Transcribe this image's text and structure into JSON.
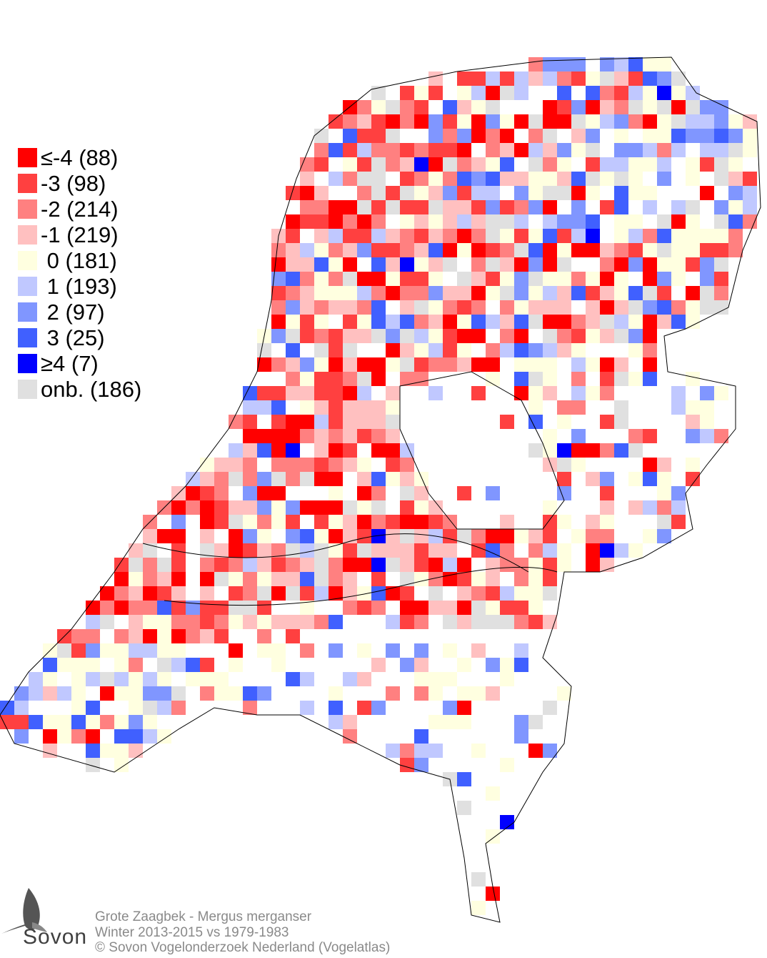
{
  "legend": {
    "items": [
      {
        "label": "≤-4 (88)",
        "color": "#ff0000"
      },
      {
        "label": "-3 (98)",
        "color": "#ff4040"
      },
      {
        "label": "-2 (214)",
        "color": "#ff8080"
      },
      {
        "label": "-1 (219)",
        "color": "#ffc0c0"
      },
      {
        "label": " 0 (181)",
        "color": "#ffffe0"
      },
      {
        "label": " 1 (193)",
        "color": "#c0c8ff"
      },
      {
        "label": " 2 (97)",
        "color": "#8096ff"
      },
      {
        "label": " 3 (25)",
        "color": "#4060ff"
      },
      {
        "label": "≥4 (7)",
        "color": "#0000ff"
      },
      {
        "label": "onb. (186)",
        "color": "#e0e0e0"
      }
    ]
  },
  "footer": {
    "species": "Grote Zaagbek - Mergus merganser",
    "period": "Winter 2013-2015 vs 1979-1983",
    "copyright": "© Sovon Vogelonderzoek Nederland (Vogelatlas)"
  },
  "logo": {
    "text": "Sovon"
  }
}
